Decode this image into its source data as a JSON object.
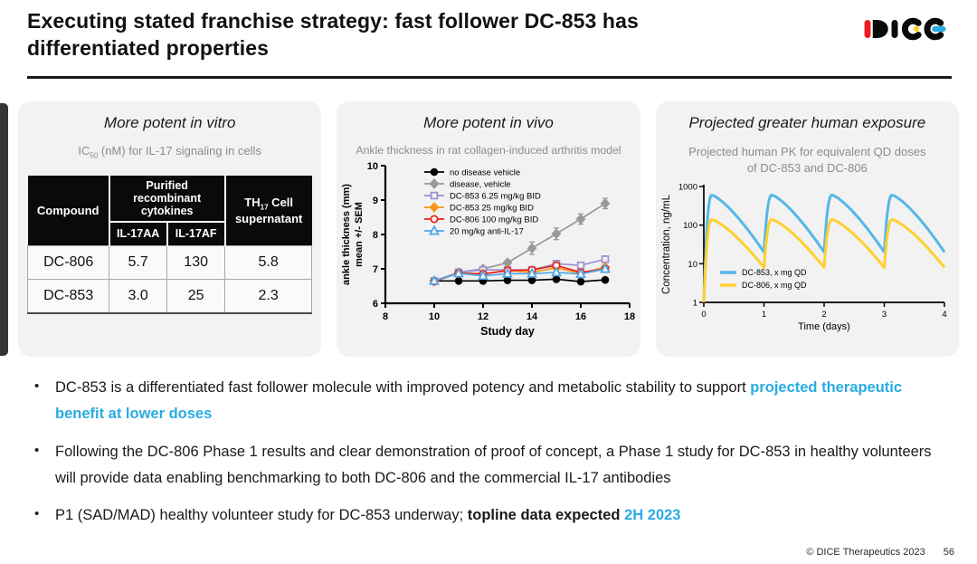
{
  "header": {
    "title_lines": [
      "Executing stated franchise strategy: fast follower DC-853 has",
      "differentiated properties"
    ],
    "logo": "DICE"
  },
  "colors": {
    "accent_blue": "#29abe2",
    "logo_red": "#ed1c24",
    "logo_yellow": "#ffd21e",
    "logo_blue": "#29abe2",
    "panel_bg": "#f2f2f2"
  },
  "panels": {
    "vitro": {
      "heading": "More potent in vitro",
      "subtitle": {
        "prefix": "IC",
        "sub": "50",
        "suffix": " (nM) for IL-17 signaling in cells"
      },
      "table": {
        "compound_header": "Compound",
        "group_header": "Purified recombinant cytokines",
        "sub_headers": [
          "IL-17AA",
          "IL-17AF"
        ],
        "supernatant_header": {
          "prefix": "TH",
          "sub": "17",
          "suffix": " Cell supernatant"
        },
        "rows": [
          {
            "compound": "DC-806",
            "il17aa": "5.7",
            "il17af": "130",
            "th17": "5.8"
          },
          {
            "compound": "DC-853",
            "il17aa": "3.0",
            "il17af": "25",
            "th17": "2.3"
          }
        ]
      }
    },
    "vivo": {
      "heading": "More potent in vivo",
      "subtitle": "Ankle thickness in rat collagen-induced arthritis model"
    },
    "exposure": {
      "heading": "Projected greater human exposure",
      "subtitle": "Projected human PK for equivalent QD doses of DC-853 and DC-806"
    }
  },
  "bullets": [
    {
      "segments": [
        {
          "text": "DC-853 is a differentiated fast follower molecule with improved potency and metabolic stability to support ",
          "style": "normal"
        },
        {
          "text": "projected therapeutic benefit at lower doses",
          "style": "accent-bold"
        }
      ]
    },
    {
      "segments": [
        {
          "text": "Following the DC-806 Phase 1 results and clear demonstration of proof of concept, a Phase 1 study for DC-853 in healthy volunteers will provide data enabling benchmarking to both DC-806 and the commercial IL-17 antibodies",
          "style": "normal"
        }
      ]
    },
    {
      "segments": [
        {
          "text": "P1 (SAD/MAD) healthy volunteer study for DC-853 underway; ",
          "style": "normal"
        },
        {
          "text": "topline data expected",
          "style": "bold"
        },
        {
          "text": " ",
          "style": "normal"
        },
        {
          "text": "2H 2023",
          "style": "accent-bold"
        }
      ]
    }
  ],
  "footer": {
    "copyright": "© DICE Therapeutics 2023",
    "page_number": "56"
  },
  "chart_data": [
    {
      "type": "table",
      "title": "IC50 (nM) for IL-17 signaling in cells",
      "column_groups": [
        {
          "label": "Purified recombinant cytokines",
          "columns": [
            "IL-17AA",
            "IL-17AF"
          ]
        }
      ],
      "columns": [
        "Compound",
        "IL-17AA",
        "IL-17AF",
        "TH17 Cell supernatant"
      ],
      "rows": [
        [
          "DC-806",
          "5.7",
          "130",
          "5.8"
        ],
        [
          "DC-853",
          "3.0",
          "25",
          "2.3"
        ]
      ]
    },
    {
      "type": "line",
      "title": "Ankle thickness in rat collagen-induced arthritis model",
      "xlabel": "Study day",
      "ylabel_lines": [
        "ankle thickness (mm)",
        "mean +/- SEM"
      ],
      "xlim": [
        8,
        18
      ],
      "ylim": [
        6,
        10
      ],
      "xticks": [
        8,
        10,
        12,
        14,
        16,
        18
      ],
      "yticks": [
        6,
        7,
        8,
        9,
        10
      ],
      "legend_position": "top-left",
      "x": [
        10,
        11,
        12,
        13,
        14,
        15,
        16,
        17
      ],
      "series": [
        {
          "name": "no disease vehicle",
          "marker": "circle",
          "fill": "solid",
          "color": "#000000",
          "values": [
            6.65,
            6.65,
            6.65,
            6.67,
            6.67,
            6.7,
            6.63,
            6.68
          ],
          "err": [
            0.03,
            0.03,
            0.03,
            0.03,
            0.03,
            0.03,
            0.03,
            0.03
          ]
        },
        {
          "name": "disease, vehicle",
          "marker": "diamond",
          "fill": "solid",
          "color": "#999999",
          "values": [
            6.65,
            6.9,
            7.0,
            7.18,
            7.6,
            8.02,
            8.45,
            8.9
          ],
          "err": [
            0.04,
            0.05,
            0.07,
            0.07,
            0.18,
            0.17,
            0.15,
            0.15
          ]
        },
        {
          "name": "DC-853 6.25 mg/kg BID",
          "marker": "square",
          "fill": "open",
          "color": "#9b8fd4",
          "values": [
            6.65,
            6.9,
            6.97,
            6.97,
            6.97,
            7.15,
            7.1,
            7.28
          ],
          "err": [
            0.04,
            0.05,
            0.06,
            0.06,
            0.07,
            0.08,
            0.08,
            0.09
          ]
        },
        {
          "name": "DC-853 25 mg/kg BID",
          "marker": "diamond",
          "fill": "solid",
          "color": "#f7941d",
          "values": [
            6.65,
            6.88,
            6.86,
            6.95,
            6.9,
            7.03,
            6.87,
            7.05
          ],
          "err": [
            0.04,
            0.04,
            0.05,
            0.05,
            0.05,
            0.06,
            0.05,
            0.06
          ]
        },
        {
          "name": "DC-806 100 mg/kg BID",
          "marker": "circle",
          "fill": "open",
          "color": "#e8231a",
          "values": [
            6.63,
            6.88,
            6.85,
            6.95,
            6.97,
            7.1,
            6.9,
            7.0
          ],
          "err": [
            0.04,
            0.04,
            0.05,
            0.05,
            0.05,
            0.06,
            0.05,
            0.06
          ]
        },
        {
          "name": "20 mg/kg anti-IL-17",
          "marker": "triangle",
          "fill": "open",
          "color": "#4da6e8",
          "values": [
            6.65,
            6.87,
            6.8,
            6.86,
            6.86,
            6.9,
            6.85,
            7.0
          ],
          "err": [
            0.04,
            0.04,
            0.05,
            0.05,
            0.05,
            0.05,
            0.05,
            0.05
          ]
        }
      ]
    },
    {
      "type": "line",
      "title": "Projected human PK for equivalent QD doses of DC-853 and DC-806",
      "xlabel": "Time (days)",
      "ylabel": "Concentration, ng/mL",
      "xlim": [
        0,
        4
      ],
      "ylim": [
        1,
        1000
      ],
      "y_scale": "log",
      "xticks": [
        0,
        1,
        2,
        3,
        4
      ],
      "yticks": [
        1,
        10,
        100,
        1000
      ],
      "legend_position": "bottom-left",
      "series": [
        {
          "name": "DC-853, x mg QD",
          "color": "#55b7e8",
          "start": 1,
          "peak": 600,
          "trough": 20,
          "doses": 4,
          "interval_days": 1
        },
        {
          "name": "DC-806, x mg QD",
          "color": "#ffd02e",
          "start": 1,
          "peak": 140,
          "trough": 8,
          "doses": 4,
          "interval_days": 1
        }
      ]
    }
  ]
}
